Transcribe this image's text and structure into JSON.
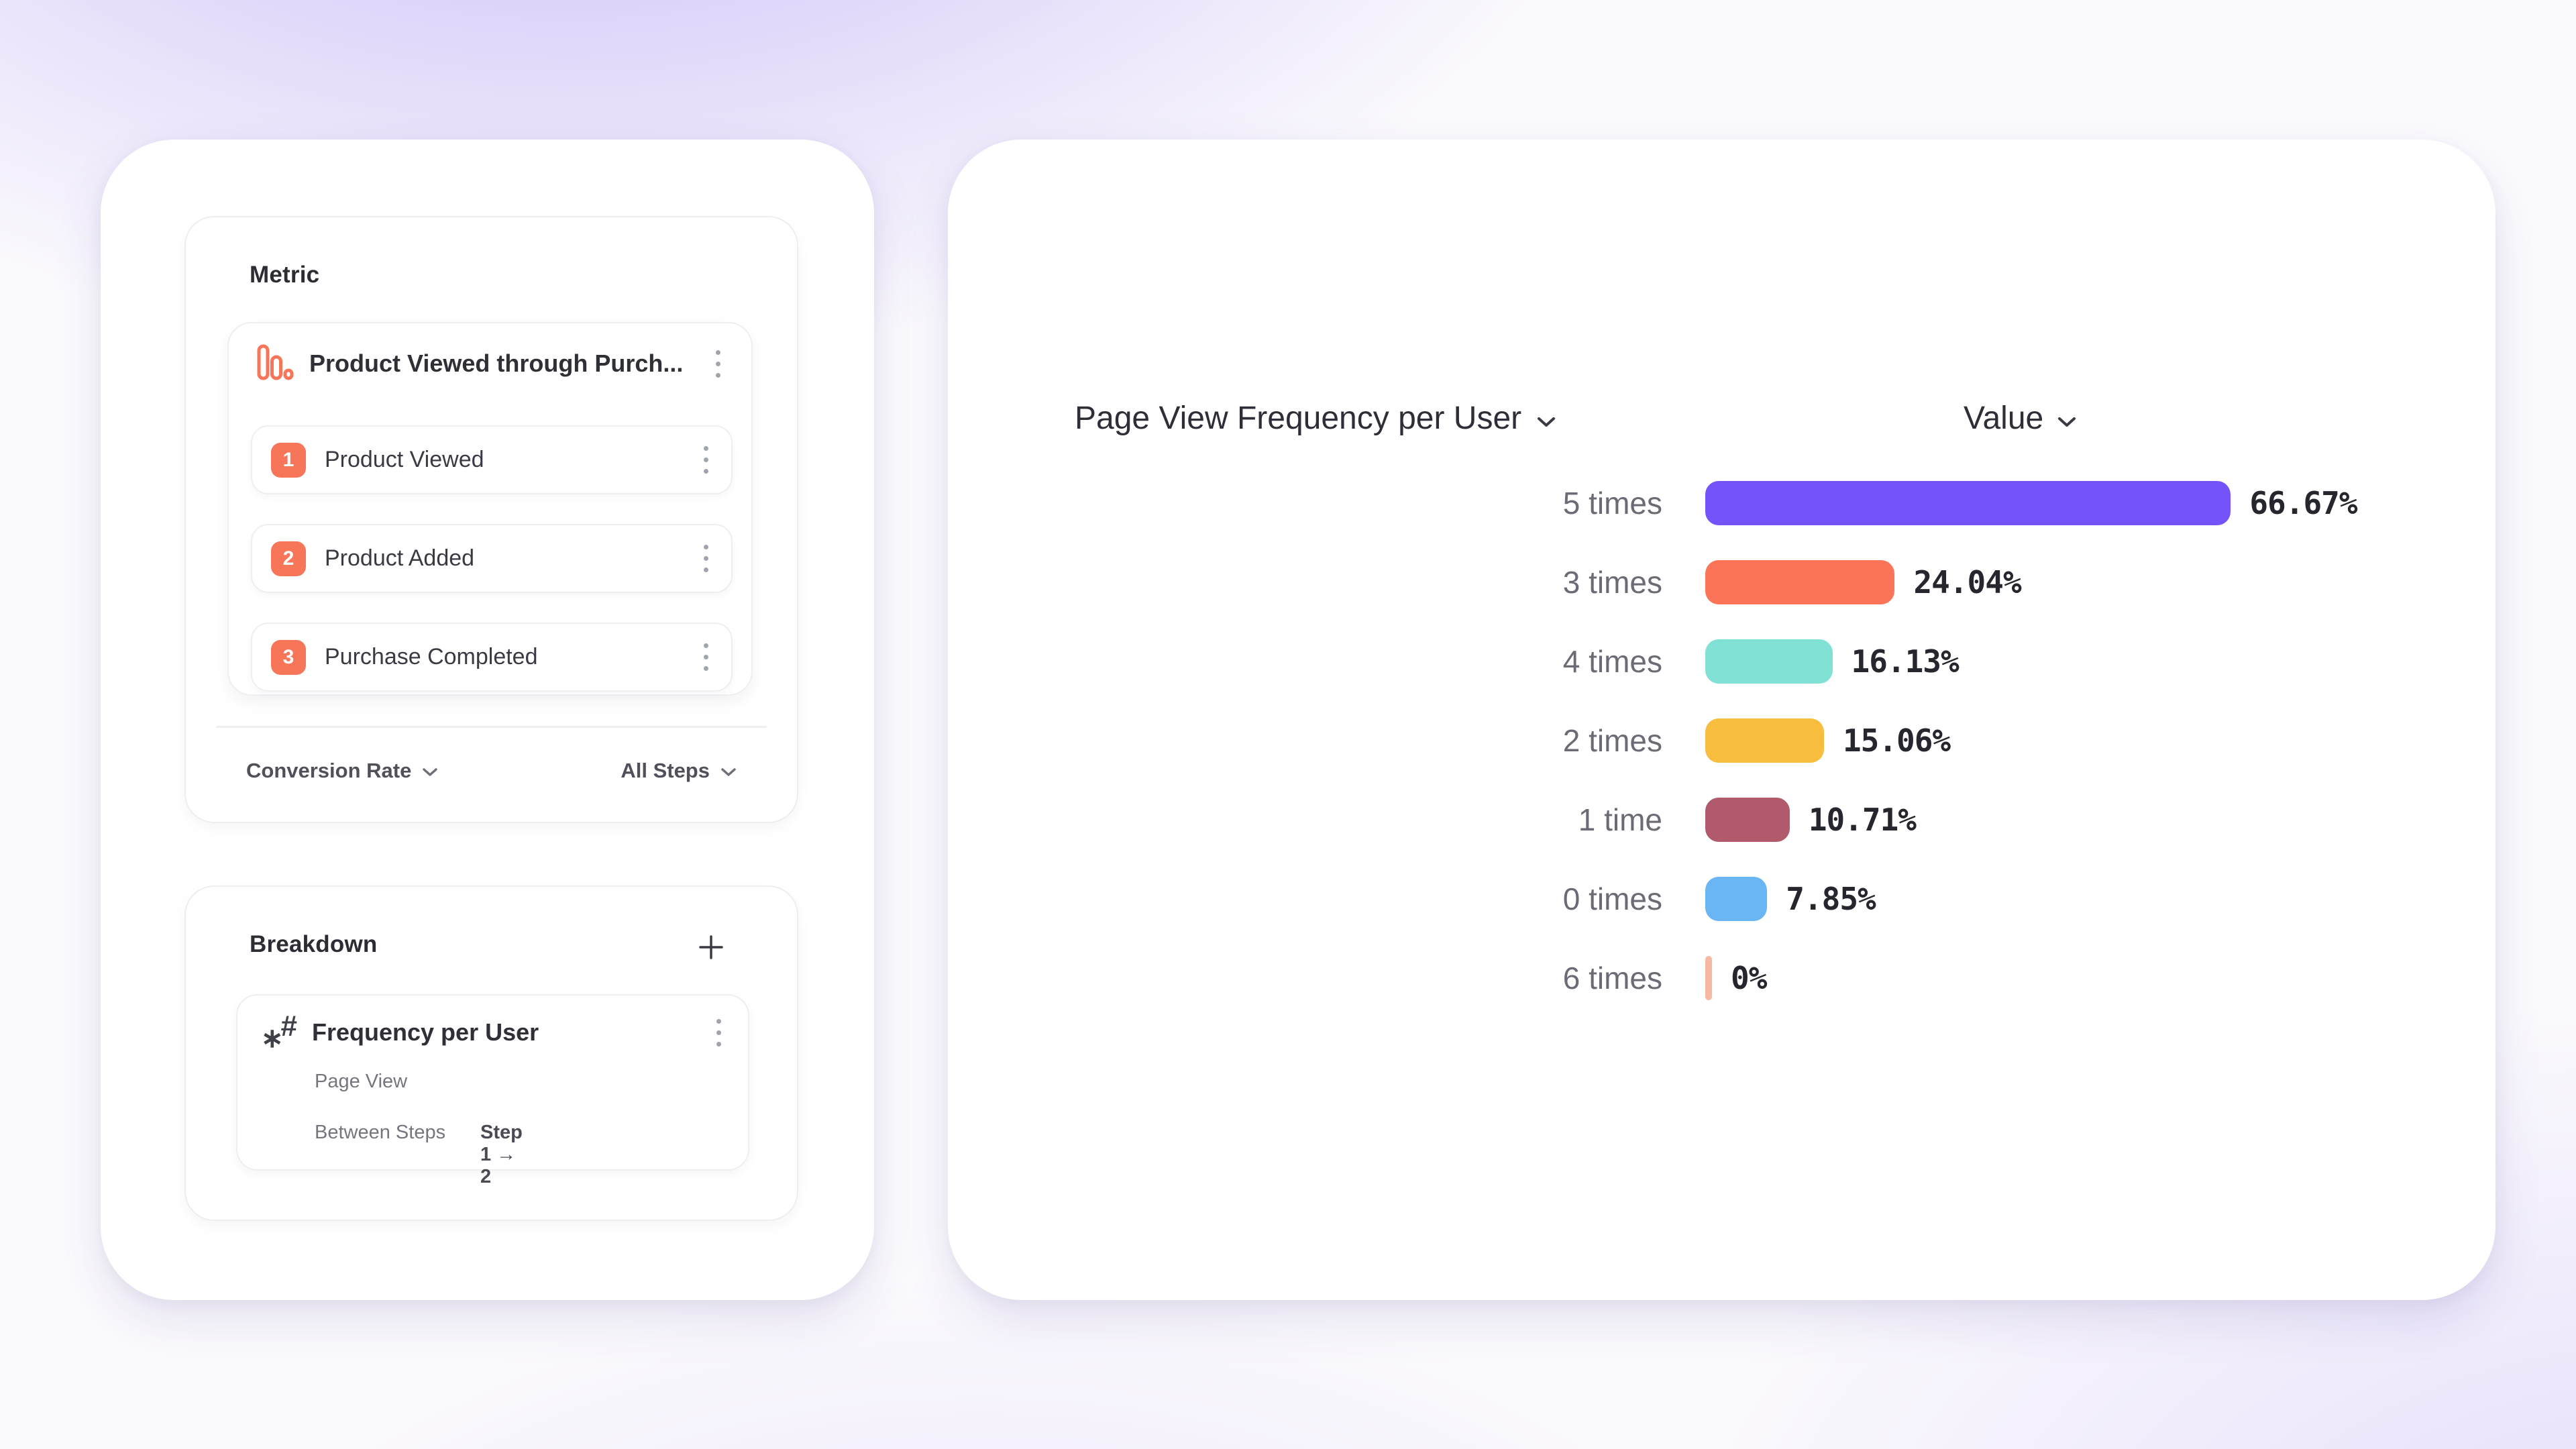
{
  "metric_panel": {
    "title": "Metric",
    "funnel": {
      "icon": "funnel-bars-icon",
      "title": "Product Viewed through Purch...",
      "steps": [
        {
          "num": "1",
          "label": "Product Viewed"
        },
        {
          "num": "2",
          "label": "Product Added"
        },
        {
          "num": "3",
          "label": "Purchase Completed"
        }
      ]
    },
    "footer": {
      "left_dropdown": "Conversion Rate",
      "right_dropdown": "All Steps"
    }
  },
  "breakdown_panel": {
    "title": "Breakdown",
    "add_button": "+",
    "item": {
      "icon": "number-property-icon",
      "title": "Frequency per User",
      "event": "Page View",
      "scope_label": "Between Steps",
      "scope_value": "Step 1 → 2"
    }
  },
  "chart": {
    "title": "Page View Frequency per User",
    "value_header": "Value"
  },
  "chart_data": {
    "type": "bar",
    "orientation": "horizontal",
    "title": "Page View Frequency per User",
    "value_axis_label": "Value",
    "categories": [
      "5 times",
      "3 times",
      "4 times",
      "2 times",
      "1 time",
      "0 times",
      "6 times"
    ],
    "values": [
      66.67,
      24.04,
      16.13,
      15.06,
      10.71,
      7.85,
      0
    ],
    "value_labels": [
      "66.67%",
      "24.04%",
      "16.13%",
      "15.06%",
      "10.71%",
      "7.85%",
      "0%"
    ],
    "colors": [
      "#7553FB",
      "#FB7458",
      "#80E1D4",
      "#F7BD3F",
      "#B15A6B",
      "#6AB6F4",
      "#F8B7A0"
    ],
    "xlim": [
      0,
      100
    ],
    "grid": false,
    "legend": false
  },
  "ui_colors": {
    "accent_orange": "#F7765A",
    "panel_border": "#EEEEF2",
    "label_gray": "#6B6B76",
    "value_dark": "#26262E",
    "background_purple": "#835CEE"
  }
}
